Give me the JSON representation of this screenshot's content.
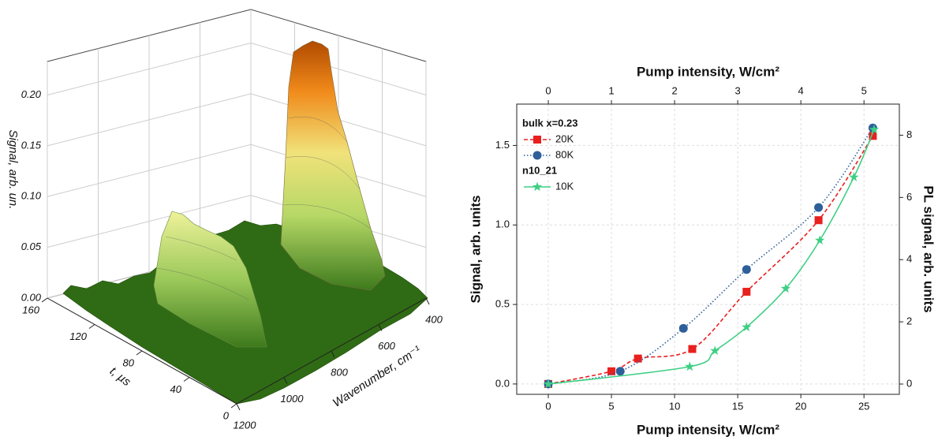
{
  "chart_data": [
    {
      "type": "surface3d",
      "xlabel": "Wavenumber, cm⁻¹",
      "ylabel": "t, µs",
      "zlabel": "Signal, arb. un.",
      "xlim": [
        1200,
        400
      ],
      "xticks": [
        400,
        600,
        800,
        1000,
        1200
      ],
      "ylim": [
        0,
        160
      ],
      "yticks": [
        0,
        40,
        80,
        120,
        160
      ],
      "zlim": [
        0,
        0.233
      ],
      "zticks": [
        {
          "value": 0,
          "label": "0.00"
        },
        0.05,
        {
          "value": 0.1,
          "label": "0.10"
        },
        0.15,
        {
          "value": 0.2,
          "label": "0.20"
        }
      ]
    },
    {
      "type": "line",
      "xlabel": "Pump intensity, W/cm²",
      "x2label": "Pump intensity, W/cm²",
      "ylabel": "Signal, arb. units",
      "y2label": "PL signal, arb. units",
      "xlim": [
        -2.5,
        27.8
      ],
      "xticks": [
        0,
        5,
        10,
        15,
        20,
        25
      ],
      "x2lim": [
        -0.5,
        5.56
      ],
      "x2ticks": [
        0,
        1,
        2,
        3,
        4,
        5
      ],
      "ylim": [
        -0.065,
        1.76
      ],
      "yticks": [
        {
          "value": 0,
          "label": "0.0"
        },
        0.5,
        {
          "value": 1,
          "label": "1.0"
        },
        1.5
      ],
      "y2lim": [
        -0.33,
        9.0
      ],
      "y2ticks": [
        0,
        2,
        4,
        6,
        8
      ],
      "grid": true,
      "series": [
        {
          "name": "20K",
          "group": "bulk x=0.23",
          "color": "#e8201e",
          "marker": "square",
          "linestyle": "dashed",
          "x": [
            0,
            5,
            7.1,
            11.4,
            15.7,
            21.4,
            25.7
          ],
          "values": [
            0,
            0.08,
            0.16,
            0.22,
            0.58,
            1.03,
            1.56
          ]
        },
        {
          "name": "80K",
          "group": "bulk x=0.23",
          "color": "#2e5f9a",
          "marker": "circle",
          "linestyle": "dotted",
          "x": [
            0,
            5.7,
            10.7,
            15.7,
            21.4,
            25.7
          ],
          "values": [
            0,
            0.08,
            0.35,
            0.72,
            1.11,
            1.61
          ]
        },
        {
          "name": "10K",
          "group": "n10_21",
          "color": "#3fcf84",
          "marker": "star",
          "linestyle": "solid",
          "axis": "y2",
          "x": [
            0,
            11.2,
            13.2,
            15.7,
            18.8,
            21.5,
            24.2,
            25.8
          ],
          "values": [
            0,
            0.56,
            1.07,
            1.83,
            3.07,
            4.62,
            6.65,
            8.18
          ]
        }
      ]
    }
  ]
}
